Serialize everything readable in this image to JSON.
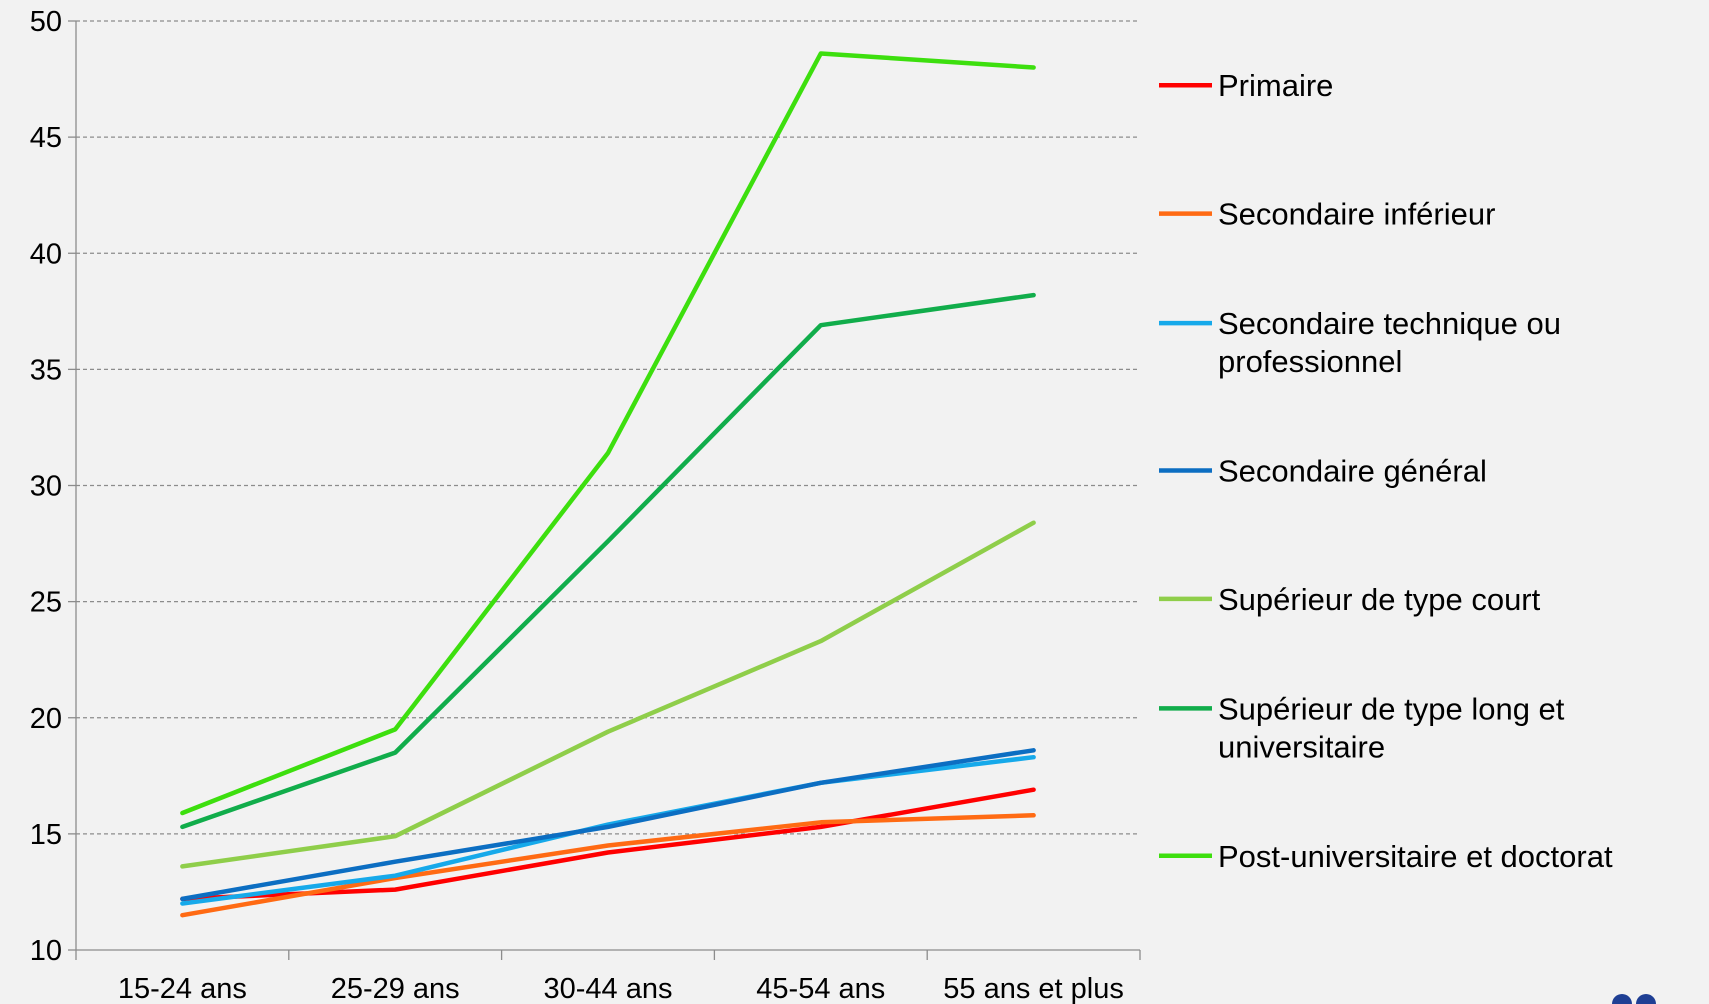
{
  "chart_data": {
    "type": "line",
    "categories": [
      "15-24 ans",
      "25-29 ans",
      "30-44 ans",
      "45-54 ans",
      "55 ans et plus"
    ],
    "ylim": [
      10,
      50
    ],
    "yticks": [
      "10",
      "15",
      "20",
      "25",
      "30",
      "35",
      "40",
      "45",
      "50"
    ],
    "grid": "horizontal-dashed",
    "legend_position": "right",
    "series": [
      {
        "name": "Primaire",
        "color": "#ff0000",
        "values": [
          12.2,
          12.6,
          14.2,
          15.3,
          16.9
        ],
        "legend_lines": [
          "Primaire"
        ]
      },
      {
        "name": "Secondaire inférieur",
        "color": "#ff6a13",
        "values": [
          11.5,
          13.1,
          14.5,
          15.5,
          15.8
        ],
        "legend_lines": [
          "Secondaire inférieur"
        ]
      },
      {
        "name": "Secondaire technique ou professionnel",
        "color": "#16a9ea",
        "values": [
          12.0,
          13.2,
          15.4,
          17.2,
          18.3
        ],
        "legend_lines": [
          "Secondaire technique ou",
          "professionnel"
        ]
      },
      {
        "name": "Secondaire général",
        "color": "#0c6ec2",
        "values": [
          12.2,
          13.8,
          15.3,
          17.2,
          18.6
        ],
        "legend_lines": [
          "Secondaire général"
        ]
      },
      {
        "name": "Supérieur de type court",
        "color": "#8fce4a",
        "values": [
          13.6,
          14.9,
          19.4,
          23.3,
          28.4
        ],
        "legend_lines": [
          "Supérieur de type court"
        ]
      },
      {
        "name": "Supérieur de type long et universitaire",
        "color": "#11ad4b",
        "values": [
          15.3,
          18.5,
          27.6,
          36.9,
          38.2
        ],
        "legend_lines": [
          "Supérieur de type long et",
          "universitaire"
        ]
      },
      {
        "name": "Post-universitaire et doctorat",
        "color": "#3ddf0e",
        "values": [
          15.9,
          19.5,
          31.4,
          48.6,
          48.0
        ],
        "legend_lines": [
          "Post-universitaire et doctorat"
        ]
      }
    ]
  }
}
